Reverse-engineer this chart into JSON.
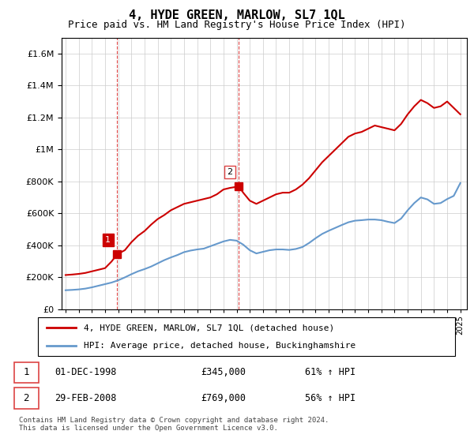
{
  "title": "4, HYDE GREEN, MARLOW, SL7 1QL",
  "subtitle": "Price paid vs. HM Land Registry's House Price Index (HPI)",
  "legend_line1": "4, HYDE GREEN, MARLOW, SL7 1QL (detached house)",
  "legend_line2": "HPI: Average price, detached house, Buckinghamshire",
  "footer": "Contains HM Land Registry data © Crown copyright and database right 2024.\nThis data is licensed under the Open Government Licence v3.0.",
  "sale1_date": "01-DEC-1998",
  "sale1_price": "£345,000",
  "sale1_hpi": "61% ↑ HPI",
  "sale2_date": "29-FEB-2008",
  "sale2_price": "£769,000",
  "sale2_hpi": "56% ↑ HPI",
  "red_color": "#cc0000",
  "blue_color": "#6699cc",
  "dashed_red": "#dd4444",
  "ylim": [
    0,
    1700000
  ],
  "xlim_start": 1994.7,
  "xlim_end": 2025.5,
  "sale1_x": 1998.92,
  "sale1_y": 345000,
  "sale2_x": 2008.17,
  "sale2_y": 769000,
  "red_x": [
    1995.0,
    1995.5,
    1996.0,
    1996.5,
    1997.0,
    1997.5,
    1998.0,
    1998.5,
    1998.92,
    1999.5,
    2000.0,
    2000.5,
    2001.0,
    2001.5,
    2002.0,
    2002.5,
    2003.0,
    2003.5,
    2004.0,
    2004.5,
    2005.0,
    2005.5,
    2006.0,
    2006.5,
    2007.0,
    2007.5,
    2008.17,
    2008.5,
    2009.0,
    2009.5,
    2010.0,
    2010.5,
    2011.0,
    2011.5,
    2012.0,
    2012.5,
    2013.0,
    2013.5,
    2014.0,
    2014.5,
    2015.0,
    2015.5,
    2016.0,
    2016.5,
    2017.0,
    2017.5,
    2018.0,
    2018.5,
    2019.0,
    2019.5,
    2020.0,
    2020.5,
    2021.0,
    2021.5,
    2022.0,
    2022.5,
    2023.0,
    2023.5,
    2024.0,
    2024.5,
    2025.0
  ],
  "red_y": [
    215000,
    218000,
    222000,
    228000,
    238000,
    248000,
    258000,
    300000,
    345000,
    370000,
    420000,
    460000,
    490000,
    530000,
    565000,
    590000,
    620000,
    640000,
    660000,
    670000,
    680000,
    690000,
    700000,
    720000,
    750000,
    760000,
    769000,
    730000,
    680000,
    660000,
    680000,
    700000,
    720000,
    730000,
    730000,
    750000,
    780000,
    820000,
    870000,
    920000,
    960000,
    1000000,
    1040000,
    1080000,
    1100000,
    1110000,
    1130000,
    1150000,
    1140000,
    1130000,
    1120000,
    1160000,
    1220000,
    1270000,
    1310000,
    1290000,
    1260000,
    1270000,
    1300000,
    1260000,
    1220000
  ],
  "blue_x": [
    1995.0,
    1995.5,
    1996.0,
    1996.5,
    1997.0,
    1997.5,
    1998.0,
    1998.5,
    1999.0,
    1999.5,
    2000.0,
    2000.5,
    2001.0,
    2001.5,
    2002.0,
    2002.5,
    2003.0,
    2003.5,
    2004.0,
    2004.5,
    2005.0,
    2005.5,
    2006.0,
    2006.5,
    2007.0,
    2007.5,
    2008.0,
    2008.5,
    2009.0,
    2009.5,
    2010.0,
    2010.5,
    2011.0,
    2011.5,
    2012.0,
    2012.5,
    2013.0,
    2013.5,
    2014.0,
    2014.5,
    2015.0,
    2015.5,
    2016.0,
    2016.5,
    2017.0,
    2017.5,
    2018.0,
    2018.5,
    2019.0,
    2019.5,
    2020.0,
    2020.5,
    2021.0,
    2021.5,
    2022.0,
    2022.5,
    2023.0,
    2023.5,
    2024.0,
    2024.5,
    2025.0
  ],
  "blue_y": [
    120000,
    122000,
    125000,
    130000,
    138000,
    148000,
    158000,
    168000,
    182000,
    200000,
    220000,
    238000,
    252000,
    268000,
    288000,
    308000,
    325000,
    340000,
    358000,
    368000,
    375000,
    380000,
    395000,
    410000,
    425000,
    435000,
    430000,
    405000,
    370000,
    350000,
    360000,
    370000,
    375000,
    375000,
    372000,
    378000,
    390000,
    415000,
    445000,
    472000,
    492000,
    510000,
    528000,
    545000,
    555000,
    558000,
    562000,
    562000,
    558000,
    548000,
    540000,
    568000,
    620000,
    665000,
    700000,
    688000,
    660000,
    665000,
    690000,
    710000,
    790000
  ]
}
